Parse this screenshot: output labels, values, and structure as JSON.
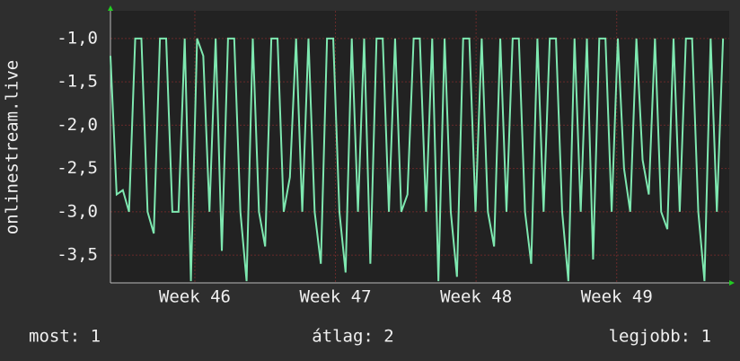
{
  "chart_data": {
    "type": "line",
    "ylabel": "onlinestream.live",
    "xlim": [
      45.4,
      49.8
    ],
    "xticks": [
      {
        "value": 46,
        "label": "Week 46"
      },
      {
        "value": 47,
        "label": "Week 47"
      },
      {
        "value": 48,
        "label": "Week 48"
      },
      {
        "value": 49,
        "label": "Week 49"
      }
    ],
    "ylim": [
      -3.82,
      -0.68
    ],
    "yticks": [
      {
        "value": -1.0,
        "label": "-1,0"
      },
      {
        "value": -1.5,
        "label": "-1,5"
      },
      {
        "value": -2.0,
        "label": "-2,0"
      },
      {
        "value": -2.5,
        "label": "-2,5"
      },
      {
        "value": -3.0,
        "label": "-3,0"
      },
      {
        "value": -3.5,
        "label": "-3,5"
      }
    ],
    "grid": true,
    "series": [
      {
        "color": "#7ee8b0",
        "x": [
          45.4,
          45.444,
          45.488,
          45.532,
          45.576,
          45.62,
          45.664,
          45.708,
          45.752,
          45.796,
          45.84,
          45.884,
          45.928,
          45.972,
          46.016,
          46.06,
          46.104,
          46.148,
          46.192,
          46.236,
          46.28,
          46.324,
          46.368,
          46.412,
          46.456,
          46.5,
          46.544,
          46.588,
          46.632,
          46.676,
          46.72,
          46.764,
          46.808,
          46.852,
          46.896,
          46.94,
          46.984,
          47.028,
          47.072,
          47.116,
          47.16,
          47.204,
          47.248,
          47.292,
          47.336,
          47.38,
          47.424,
          47.468,
          47.512,
          47.556,
          47.6,
          47.644,
          47.688,
          47.732,
          47.776,
          47.82,
          47.864,
          47.908,
          47.952,
          47.996,
          48.04,
          48.084,
          48.128,
          48.172,
          48.216,
          48.26,
          48.304,
          48.348,
          48.392,
          48.436,
          48.48,
          48.524,
          48.568,
          48.612,
          48.656,
          48.7,
          48.744,
          48.788,
          48.832,
          48.876,
          48.92,
          48.964,
          49.008,
          49.052,
          49.096,
          49.14,
          49.184,
          49.228,
          49.272,
          49.316,
          49.36,
          49.404,
          49.448,
          49.492,
          49.536,
          49.58,
          49.624,
          49.668,
          49.712,
          49.756
        ],
        "values": [
          -1.2,
          -2.8,
          -2.75,
          -3.0,
          -1.0,
          -1.0,
          -3.0,
          -3.25,
          -1.0,
          -1.0,
          -3.0,
          -3.0,
          -1.0,
          -3.8,
          -1.0,
          -1.2,
          -3.0,
          -1.0,
          -3.45,
          -1.0,
          -1.0,
          -3.0,
          -3.8,
          -1.0,
          -3.0,
          -3.4,
          -1.0,
          -1.0,
          -3.0,
          -2.6,
          -1.0,
          -3.0,
          -1.0,
          -3.0,
          -3.6,
          -1.0,
          -1.0,
          -3.0,
          -3.7,
          -1.0,
          -3.0,
          -1.0,
          -3.6,
          -1.0,
          -1.0,
          -3.0,
          -1.0,
          -3.0,
          -2.8,
          -1.0,
          -1.0,
          -3.0,
          -1.0,
          -3.8,
          -1.0,
          -3.0,
          -3.75,
          -1.0,
          -1.0,
          -3.0,
          -1.0,
          -3.0,
          -3.4,
          -1.0,
          -3.0,
          -1.0,
          -1.0,
          -3.0,
          -3.6,
          -1.0,
          -3.0,
          -1.0,
          -1.0,
          -3.0,
          -3.8,
          -1.0,
          -3.0,
          -1.0,
          -3.55,
          -1.0,
          -1.0,
          -3.0,
          -1.0,
          -2.5,
          -3.0,
          -1.0,
          -2.4,
          -2.8,
          -1.0,
          -3.0,
          -3.2,
          -1.0,
          -3.0,
          -1.0,
          -1.0,
          -3.0,
          -3.8,
          -1.0,
          -3.0,
          -1.0
        ]
      }
    ],
    "stats": [
      "most: 1",
      "átlag: 2",
      "legjobb: 1"
    ]
  }
}
